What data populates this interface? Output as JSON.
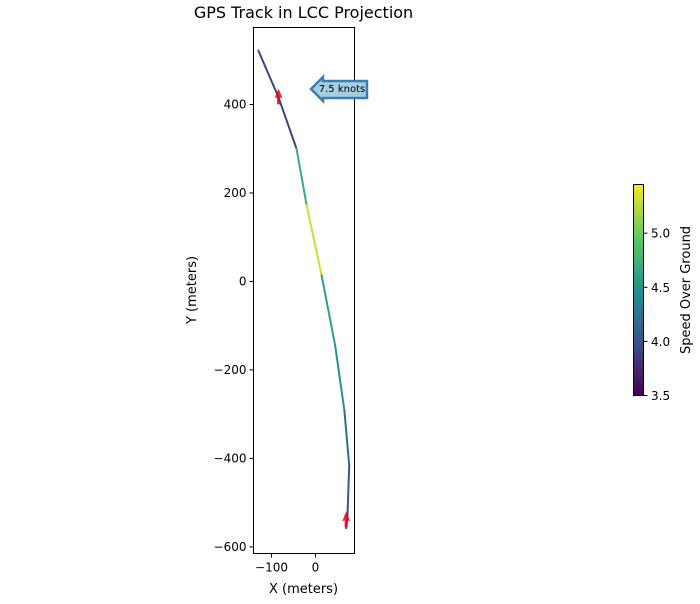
{
  "chart_data": {
    "type": "line",
    "title": "GPS Track in LCC Projection",
    "xlabel": "X (meters)",
    "ylabel": "Y (meters)",
    "xlim": [
      -141,
      89
    ],
    "ylim": [
      -615,
      574
    ],
    "xticks": [
      -100,
      0
    ],
    "xtick_labels": [
      "−100",
      "0"
    ],
    "yticks": [
      400,
      200,
      0,
      -200,
      -400,
      -600
    ],
    "ytick_labels": [
      "400",
      "200",
      "0",
      "−200",
      "−400",
      "−600"
    ],
    "grid": false,
    "track": {
      "x": [
        -130,
        -84,
        -43,
        -20,
        14,
        45,
        66,
        77,
        73,
        70
      ],
      "y": [
        522,
        416,
        300,
        172,
        14,
        -145,
        -292,
        -416,
        -529,
        -558
      ],
      "segment_speed": [
        3.9,
        3.9,
        4.7,
        5.3,
        4.6,
        4.5,
        4.2,
        4.0,
        4.0
      ]
    },
    "direction_arrows": [
      {
        "x": -84,
        "y": 416,
        "direction": "up",
        "color": "#e8001c"
      },
      {
        "x": 70,
        "y": -540,
        "direction": "up",
        "color": "#e8001c"
      }
    ],
    "annotation": {
      "text": "7.5 knots",
      "x": 0,
      "y": 430,
      "arrow_direction": "left",
      "facecolor": "#a6cee3",
      "edgecolor": "#3a7db5"
    },
    "colorbar": {
      "label": "Speed Over Ground",
      "colormap": "viridis",
      "range": [
        3.5,
        5.45
      ],
      "ticks": [
        3.5,
        4.0,
        4.5,
        5.0
      ],
      "tick_labels": [
        "3.5",
        "4.0",
        "4.5",
        "5.0"
      ]
    }
  }
}
